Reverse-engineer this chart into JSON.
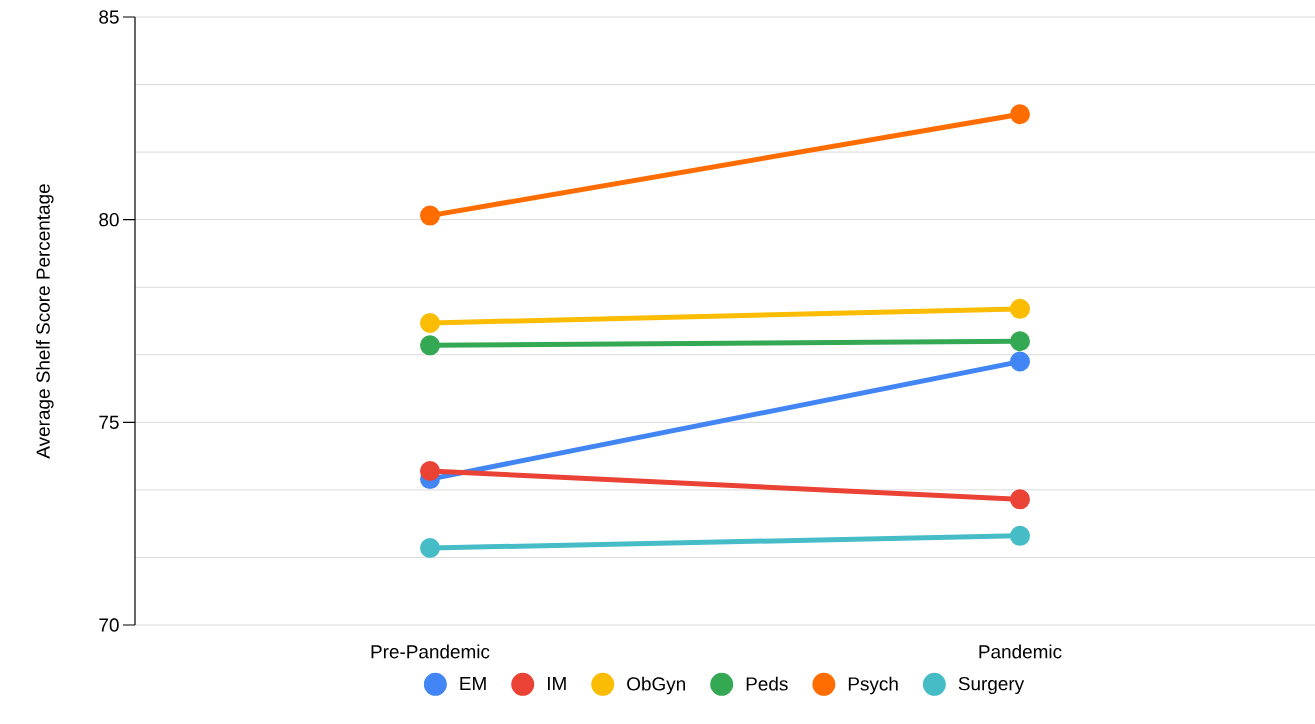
{
  "chart_data": {
    "type": "line",
    "ylabel": "Average Shelf Score Percentage",
    "categories": [
      "Pre-Pandemic",
      "Pandemic"
    ],
    "series": [
      {
        "name": "EM",
        "color": "#4285f4",
        "values": [
          73.6,
          76.5
        ]
      },
      {
        "name": "IM",
        "color": "#ea4335",
        "values": [
          73.8,
          73.1
        ]
      },
      {
        "name": "ObGyn",
        "color": "#fbbc04",
        "values": [
          77.45,
          77.8
        ]
      },
      {
        "name": "Peds",
        "color": "#34a853",
        "values": [
          76.9,
          77.0
        ]
      },
      {
        "name": "Psych",
        "color": "#ff6d01",
        "values": [
          80.1,
          82.6
        ]
      },
      {
        "name": "Surgery",
        "color": "#46bdc6",
        "values": [
          71.9,
          72.2
        ]
      }
    ],
    "ylim": [
      70,
      85
    ],
    "yticks": [
      70,
      75,
      80,
      85
    ],
    "grid": "y",
    "legend": "bottom",
    "marker": "circle",
    "line_style": "solid"
  }
}
